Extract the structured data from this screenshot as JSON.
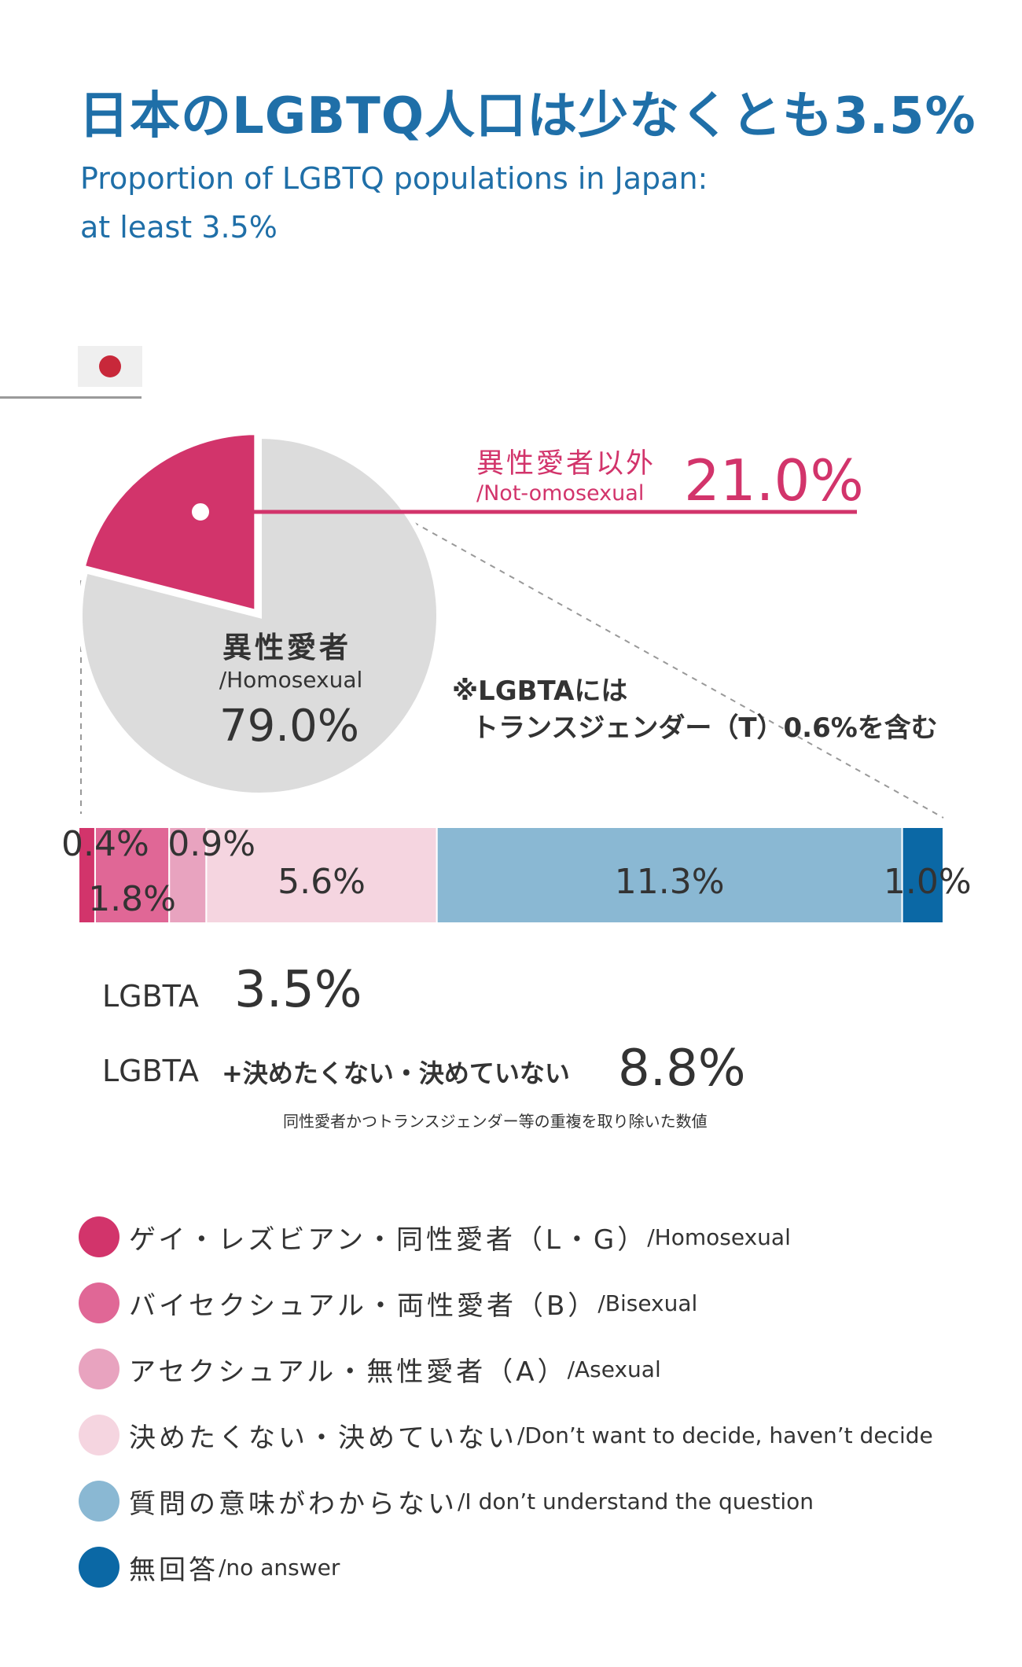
{
  "title": "日本のLGBTQ人口は少なくとも3.5%",
  "subtitle_line1": "Proportion of LGBTQ populations in Japan:",
  "subtitle_line2": "at least 3.5%",
  "colors": {
    "title": "#1f6fa8",
    "non_hetero": "#d2346b",
    "hetero": "#dcdcdc",
    "LG": "#d2346b",
    "B": "#e06796",
    "A": "#e8a3bf",
    "undecided": "#f5d5e0",
    "dont_understand": "#8ab8d3",
    "no_answer": "#0b68a5"
  },
  "chart_data": [
    {
      "type": "pie",
      "slices": [
        {
          "label_jp": "異性愛者以外",
          "label_en": "/Not-omosexual",
          "value": 21.0,
          "value_text": "21.0%"
        },
        {
          "label_jp": "異性愛者",
          "label_en": "/Homosexual",
          "value": 79.0,
          "value_text": "79.0%"
        }
      ],
      "note_line1": "※LGBTAには",
      "note_line2": "トランスジェンダー（T）0.6%を含む"
    },
    {
      "type": "bar",
      "orientation": "horizontal-stacked",
      "segments": [
        {
          "key": "LG",
          "value": 0.4,
          "value_text": "0.4%"
        },
        {
          "key": "B",
          "value": 1.8,
          "value_text": "1.8%"
        },
        {
          "key": "A",
          "value": 0.9,
          "value_text": "0.9%"
        },
        {
          "key": "undecided",
          "value": 5.6,
          "value_text": "5.6%"
        },
        {
          "key": "dont_understand",
          "value": 11.3,
          "value_text": "11.3%"
        },
        {
          "key": "no_answer",
          "value": 1.0,
          "value_text": "1.0%"
        }
      ]
    }
  ],
  "summary": {
    "lgbta_label": "LGBTA",
    "lgbta_value": "3.5%",
    "lgbta2_label": "LGBTA",
    "lgbta2_extra": "+決めたくない・決めていない",
    "lgbta2_value": "8.8%",
    "footnote": "同性愛者かつトランスジェンダー等の重複を取り除いた数値"
  },
  "legend": [
    {
      "jp": "ゲイ・レズビアン・同性愛者（L・G）",
      "en": "/Homosexual",
      "color_key": "LG"
    },
    {
      "jp": "バイセクシュアル・両性愛者（B）",
      "en": "/Bisexual",
      "color_key": "B"
    },
    {
      "jp": "アセクシュアル・無性愛者（A）",
      "en": "/Asexual",
      "color_key": "A"
    },
    {
      "jp": "決めたくない・決めていない",
      "en": "/Don’t want to decide, haven’t decide",
      "color_key": "undecided"
    },
    {
      "jp": "質問の意味がわからない",
      "en": "/I don’t understand the question",
      "color_key": "dont_understand"
    },
    {
      "jp": "無回答",
      "en": "/no answer",
      "color_key": "no_answer"
    }
  ]
}
